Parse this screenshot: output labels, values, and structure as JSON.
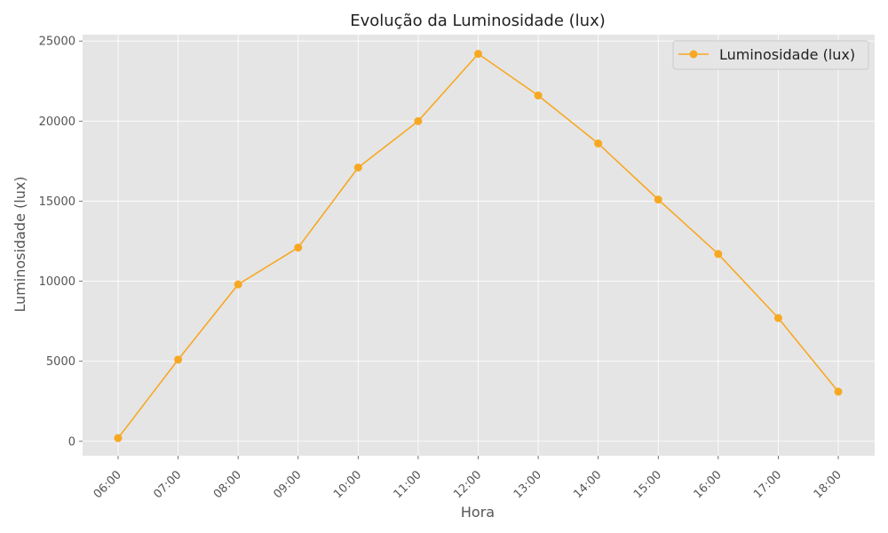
{
  "chart_data": {
    "type": "line",
    "title": "Evolução da Luminosidade (lux)",
    "xlabel": "Hora",
    "ylabel": "Luminosidade (lux)",
    "categories": [
      "06:00",
      "07:00",
      "08:00",
      "09:00",
      "10:00",
      "11:00",
      "12:00",
      "13:00",
      "14:00",
      "15:00",
      "16:00",
      "17:00",
      "18:00"
    ],
    "series": [
      {
        "name": "Luminosidade (lux)",
        "color": "#f7a823",
        "marker": "circle",
        "values": [
          200,
          5100,
          9800,
          12100,
          17100,
          20000,
          24200,
          21600,
          18600,
          15100,
          11700,
          7700,
          3100
        ]
      }
    ],
    "ylim": [
      -900,
      25400
    ],
    "yticks": [
      0,
      5000,
      10000,
      15000,
      20000,
      25000
    ],
    "grid": true,
    "legend_position": "top-right",
    "style": {
      "plot_background": "#e5e5e5",
      "grid_color": "#ffffff"
    }
  }
}
